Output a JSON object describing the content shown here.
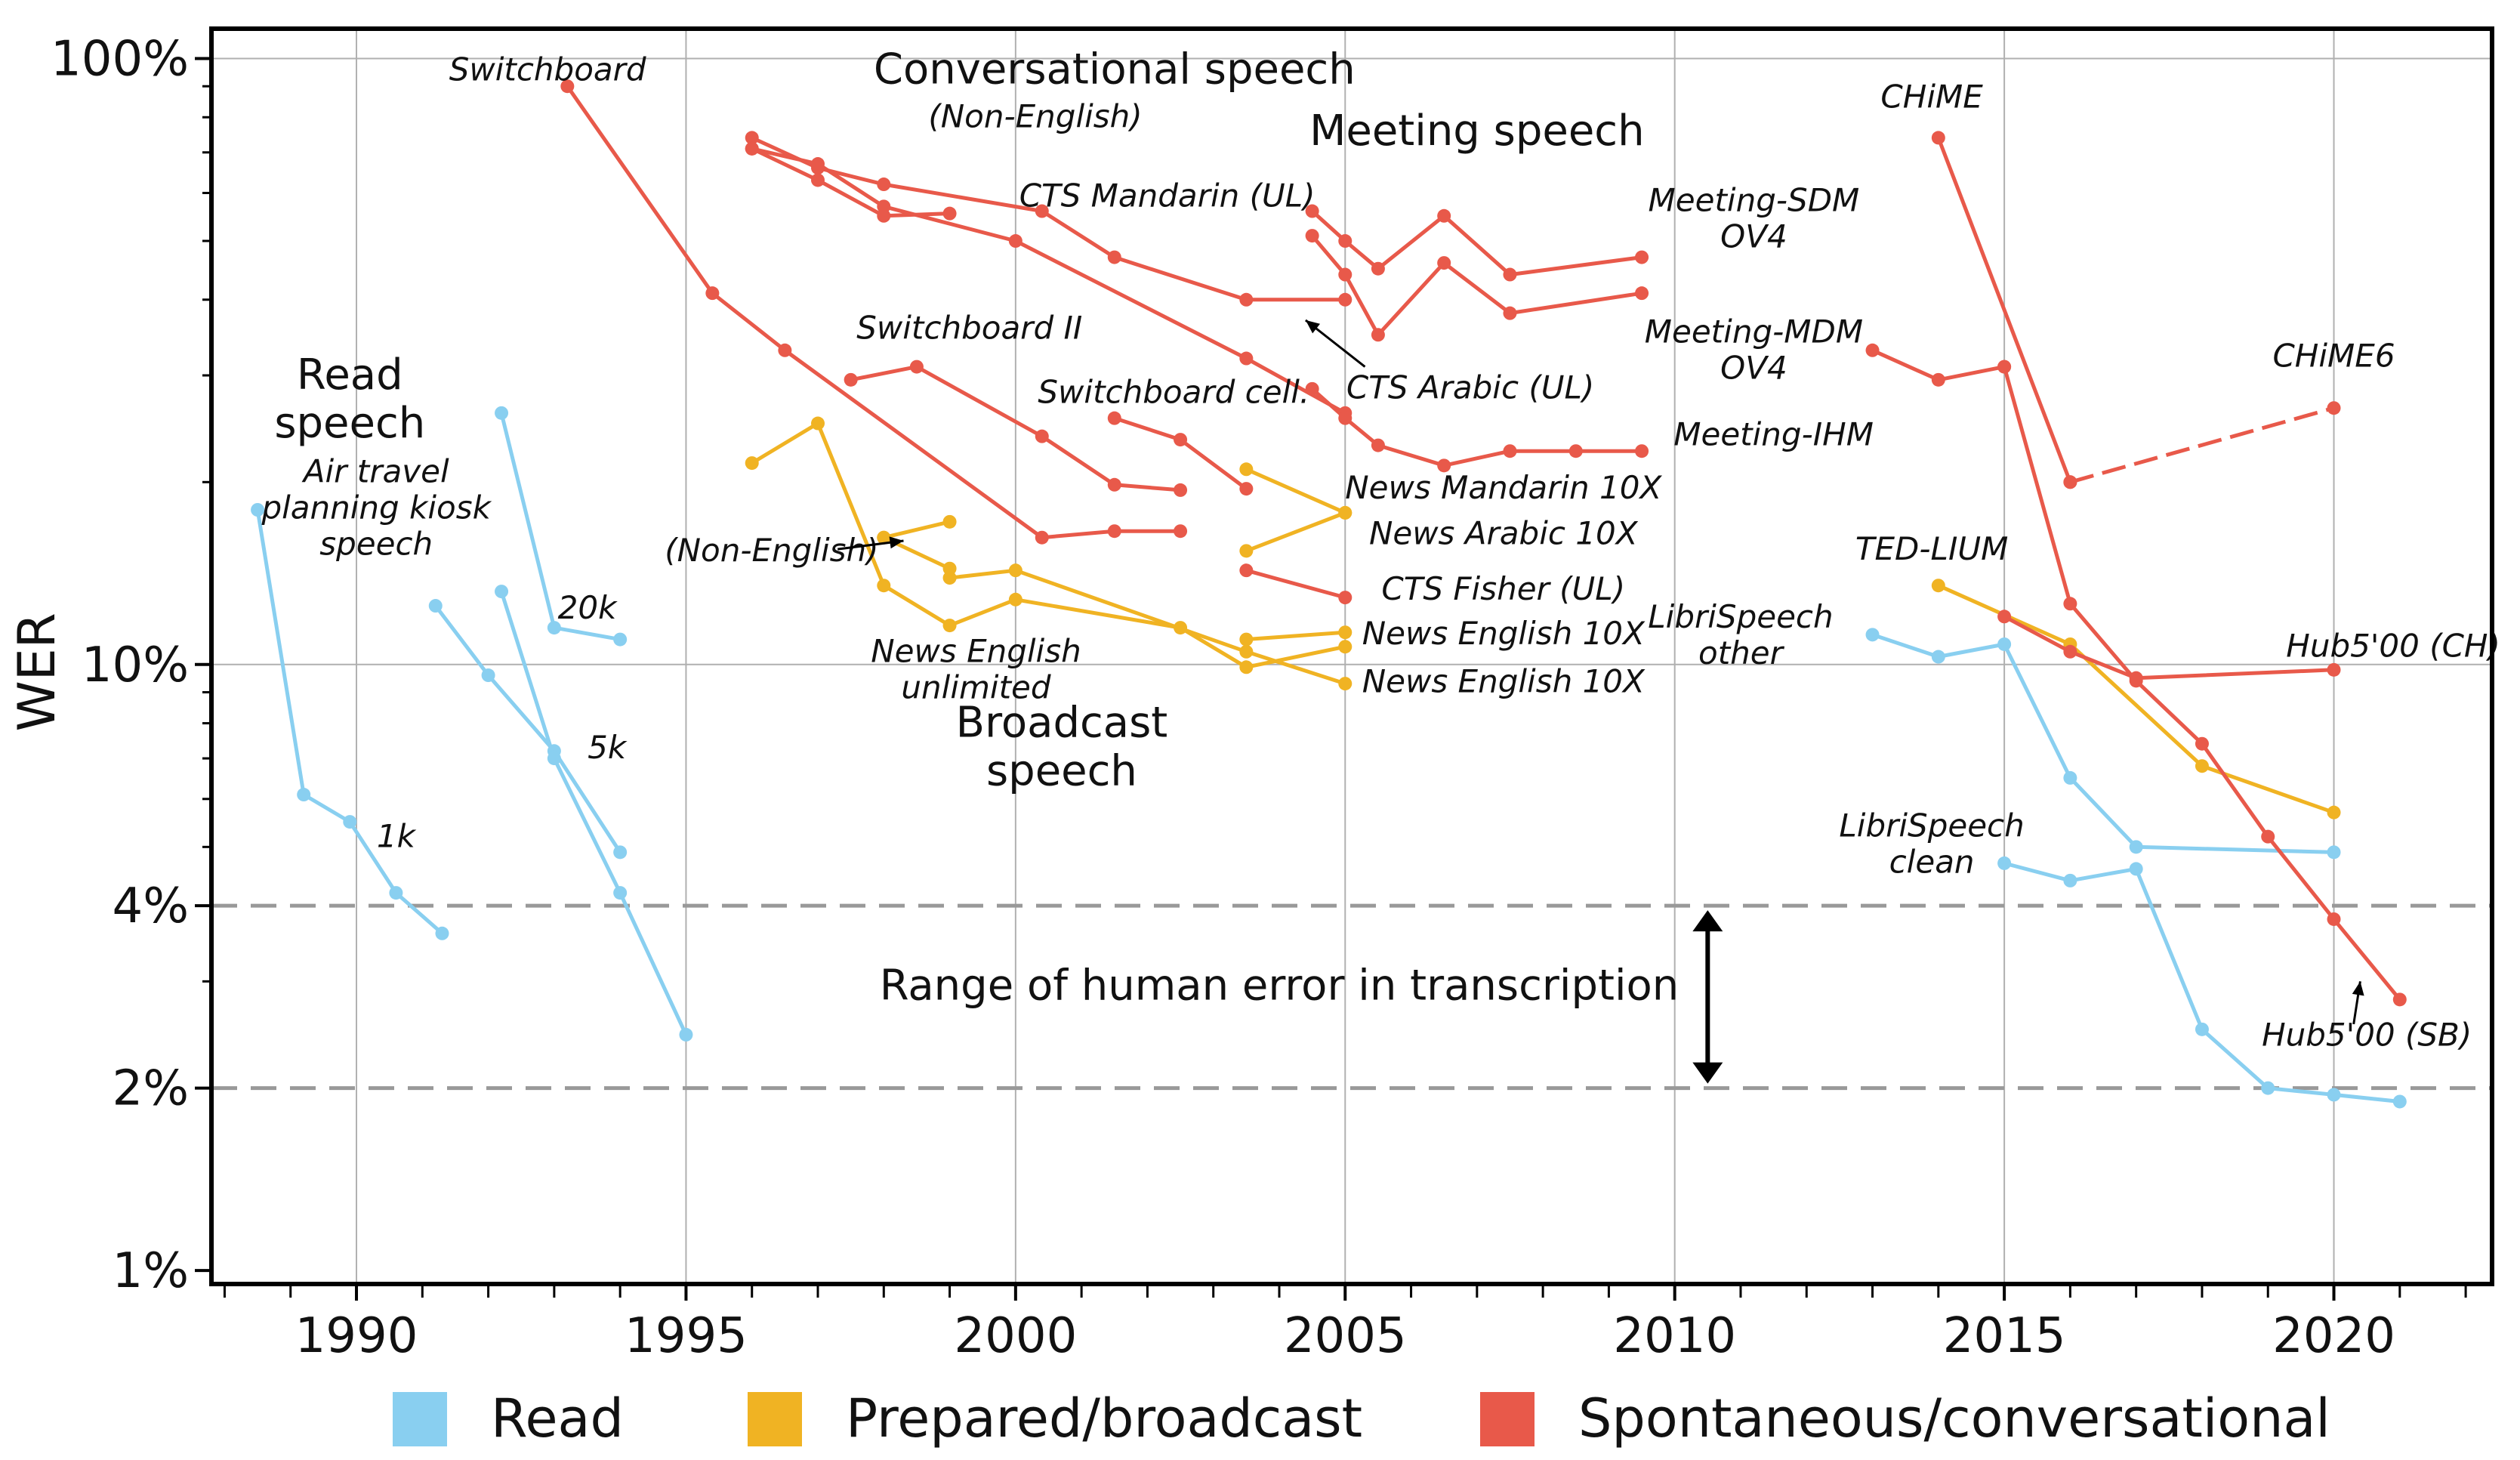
{
  "chart_data": {
    "type": "line",
    "ylabel": "WER",
    "yscale": "log",
    "xlim": [
      1987.8,
      2022.4
    ],
    "ylim": [
      0.95,
      112
    ],
    "x_ticks": [
      1990,
      1995,
      2000,
      2005,
      2010,
      2015,
      2020
    ],
    "x_tick_labels": [
      "1990",
      "1995",
      "2000",
      "2005",
      "2010",
      "2015",
      "2020"
    ],
    "y_ticks": [
      1,
      2,
      4,
      10,
      100
    ],
    "y_tick_labels": [
      "1%",
      "2%",
      "4%",
      "10%",
      "100%"
    ],
    "human_range": {
      "low": 2,
      "high": 4,
      "label": "Range of human error in transcription"
    },
    "colors": {
      "Read": "#89CFF0",
      "Prepared/broadcast": "#F0B323",
      "Spontaneous/conversational": "#E8594A",
      "grid": "#b0b0b0",
      "dashed": "#999999"
    },
    "legend": [
      {
        "name": "Read",
        "color": "#89CFF0"
      },
      {
        "name": "Prepared/broadcast",
        "color": "#F0B323"
      },
      {
        "name": "Spontaneous/conversational",
        "color": "#E8594A"
      }
    ],
    "series": [
      {
        "name": "Air travel planning kiosk speech",
        "category": "Read",
        "points": [
          [
            1988.5,
            18
          ],
          [
            1989.2,
            6.1
          ],
          [
            1989.9,
            5.5
          ],
          [
            1990.6,
            4.2
          ],
          [
            1991.3,
            3.6
          ]
        ]
      },
      {
        "name": "1k",
        "category": "Read",
        "points": [
          [
            1991.2,
            12.5
          ],
          [
            1992.0,
            9.6
          ],
          [
            1993.0,
            7.2
          ],
          [
            1994.0,
            4.9
          ]
        ]
      },
      {
        "name": "20k",
        "category": "Read",
        "points": [
          [
            1992.2,
            26
          ],
          [
            1993.0,
            11.5
          ],
          [
            1994.0,
            11.0
          ]
        ]
      },
      {
        "name": "5k",
        "category": "Read",
        "points": [
          [
            1992.2,
            13.2
          ],
          [
            1993.0,
            7.0
          ],
          [
            1994.0,
            4.2
          ],
          [
            1995.0,
            2.45
          ]
        ]
      },
      {
        "name": "LibriSpeech other",
        "category": "Read",
        "points": [
          [
            2013.0,
            11.2
          ],
          [
            2014.0,
            10.3
          ],
          [
            2015.0,
            10.8
          ],
          [
            2016.0,
            6.5
          ],
          [
            2017.0,
            5.0
          ],
          [
            2020.0,
            4.9
          ]
        ]
      },
      {
        "name": "LibriSpeech clean",
        "category": "Read",
        "points": [
          [
            2015.0,
            4.7
          ],
          [
            2016.0,
            4.4
          ],
          [
            2017.0,
            4.6
          ],
          [
            2018.0,
            2.5
          ],
          [
            2019.0,
            2.0
          ],
          [
            2020.0,
            1.95
          ],
          [
            2021.0,
            1.9
          ]
        ]
      },
      {
        "name": "News English unlimited",
        "category": "Prepared/broadcast",
        "points": [
          [
            1996.0,
            21.5
          ],
          [
            1997.0,
            25
          ],
          [
            1998.0,
            13.5
          ],
          [
            1999.0,
            11.6
          ],
          [
            2000.0,
            12.8
          ],
          [
            2002.5,
            11.5
          ],
          [
            2003.5,
            9.9
          ],
          [
            2005.0,
            10.7
          ]
        ]
      },
      {
        "name": "News English 10X",
        "category": "Prepared/broadcast",
        "points": [
          [
            1999.0,
            13.9
          ],
          [
            2000.0,
            14.3
          ],
          [
            2003.5,
            10.5
          ],
          [
            2005.0,
            9.3
          ]
        ]
      },
      {
        "name": "(Non-English)",
        "category": "Prepared/broadcast",
        "points": [
          [
            1998.0,
            16.2
          ],
          [
            1999.0,
            17.2
          ]
        ]
      },
      {
        "name": "(Non-English) b",
        "category": "Prepared/broadcast",
        "points": [
          [
            1998.0,
            16.2
          ],
          [
            1999.0,
            14.4
          ]
        ]
      },
      {
        "name": "News Mandarin 10X",
        "category": "Prepared/broadcast",
        "points": [
          [
            2003.5,
            21
          ],
          [
            2005.0,
            17.8
          ]
        ]
      },
      {
        "name": "News Arabic 10X",
        "category": "Prepared/broadcast",
        "points": [
          [
            2003.5,
            15.4
          ],
          [
            2005.0,
            17.8
          ]
        ]
      },
      {
        "name": "News English 10X (2)",
        "category": "Prepared/broadcast",
        "points": [
          [
            2003.5,
            11.0
          ],
          [
            2005.0,
            11.3
          ]
        ]
      },
      {
        "name": "TED-LIUM",
        "category": "Prepared/broadcast",
        "points": [
          [
            2014.0,
            13.5
          ],
          [
            2016.0,
            10.8
          ],
          [
            2018.0,
            6.8
          ],
          [
            2020.0,
            5.7
          ]
        ]
      },
      {
        "name": "Switchboard",
        "category": "Spontaneous/conversational",
        "points": [
          [
            1993.2,
            90
          ],
          [
            1995.4,
            41
          ],
          [
            1996.5,
            33
          ],
          [
            2000.4,
            16.2
          ],
          [
            2001.5,
            16.6
          ],
          [
            2002.5,
            16.6
          ]
        ]
      },
      {
        "name": "Conversational speech (Non-English)",
        "category": "Spontaneous/conversational",
        "points": [
          [
            1996.0,
            74
          ],
          [
            1997.0,
            66
          ],
          [
            1998.0,
            62
          ],
          [
            2000.4,
            56
          ],
          [
            2001.5,
            47
          ],
          [
            2003.5,
            40
          ],
          [
            2005.0,
            40
          ]
        ]
      },
      {
        "name": "CTS Mandarin (UL)",
        "category": "Spontaneous/conversational",
        "points": [
          [
            1996.0,
            71
          ],
          [
            1997.0,
            63
          ],
          [
            1998.0,
            55
          ],
          [
            1999.0,
            55.5
          ]
        ]
      },
      {
        "name": "CTS Arabic (UL)",
        "category": "Spontaneous/conversational",
        "points": [
          [
            1996.0,
            71
          ],
          [
            1997.0,
            67
          ],
          [
            1998.0,
            57
          ],
          [
            2000.0,
            50
          ],
          [
            2003.5,
            32
          ],
          [
            2005.0,
            26
          ]
        ]
      },
      {
        "name": "Switchboard II",
        "category": "Spontaneous/conversational",
        "points": [
          [
            1997.5,
            29.5
          ],
          [
            1998.5,
            31
          ],
          [
            2000.4,
            23.8
          ],
          [
            2001.5,
            19.8
          ],
          [
            2002.5,
            19.4
          ]
        ]
      },
      {
        "name": "Switchboard cell.",
        "category": "Spontaneous/conversational",
        "points": [
          [
            2001.5,
            25.5
          ],
          [
            2002.5,
            23.5
          ],
          [
            2003.5,
            19.5
          ]
        ]
      },
      {
        "name": "Meeting-SDM OV4",
        "category": "Spontaneous/conversational",
        "points": [
          [
            2004.5,
            56
          ],
          [
            2005.0,
            50
          ],
          [
            2005.5,
            45
          ],
          [
            2006.5,
            55
          ],
          [
            2007.5,
            44
          ],
          [
            2009.5,
            47
          ]
        ]
      },
      {
        "name": "Meeting-MDM OV4",
        "category": "Spontaneous/conversational",
        "points": [
          [
            2004.5,
            51
          ],
          [
            2005.0,
            44
          ],
          [
            2005.5,
            35
          ],
          [
            2006.5,
            46
          ],
          [
            2007.5,
            38
          ],
          [
            2009.5,
            41
          ]
        ]
      },
      {
        "name": "Meeting-IHM",
        "category": "Spontaneous/conversational",
        "points": [
          [
            2004.5,
            28.5
          ],
          [
            2005.0,
            25.5
          ],
          [
            2005.5,
            23
          ],
          [
            2006.5,
            21.3
          ],
          [
            2007.5,
            22.5
          ],
          [
            2008.5,
            22.5
          ],
          [
            2009.5,
            22.5
          ]
        ]
      },
      {
        "name": "CTS Fisher (UL)",
        "category": "Spontaneous/conversational",
        "points": [
          [
            2003.5,
            14.3
          ],
          [
            2005.0,
            12.9
          ]
        ]
      },
      {
        "name": "CHiME",
        "category": "Spontaneous/conversational",
        "points": [
          [
            2014.0,
            74
          ],
          [
            2016.0,
            20
          ]
        ]
      },
      {
        "name": "CHiME6",
        "category": "Spontaneous/conversational",
        "dashed": true,
        "points": [
          [
            2016.0,
            20
          ],
          [
            2020.0,
            26.5
          ]
        ]
      },
      {
        "name": "CHiME (Meeting)",
        "category": "Spontaneous/conversational",
        "points": [
          [
            2013.0,
            33
          ],
          [
            2014.0,
            29.5
          ],
          [
            2015.0,
            31
          ]
        ]
      },
      {
        "name": "Hub5'00 (CH)",
        "category": "Spontaneous/conversational",
        "points": [
          [
            2015.0,
            12.0
          ],
          [
            2016.0,
            10.5
          ],
          [
            2017.0,
            9.5
          ],
          [
            2020.0,
            9.8
          ]
        ]
      },
      {
        "name": "Hub5'00 (SB)",
        "category": "Spontaneous/conversational",
        "points": [
          [
            2015.0,
            31
          ],
          [
            2016.0,
            12.6
          ],
          [
            2017.0,
            9.4
          ],
          [
            2018.0,
            7.4
          ],
          [
            2019.0,
            5.2
          ],
          [
            2020.0,
            3.8
          ],
          [
            2021.0,
            2.8
          ]
        ]
      }
    ],
    "annotations": [
      {
        "id": "read-speech",
        "text": "Read speech",
        "line1": "Read",
        "line2": "speech",
        "italic": false,
        "x": 1989.9,
        "y": 28.5
      },
      {
        "id": "air-travel",
        "text": "Air travel planning kiosk speech",
        "line1": "Air travel",
        "line2": "planning kiosk",
        "line3": "speech",
        "italic": true,
        "x": 1990.3,
        "y": 20
      },
      {
        "id": "1k",
        "text": "1k",
        "italic": true,
        "x": 1990.6,
        "y": 5.0
      },
      {
        "id": "20k",
        "text": "20k",
        "italic": true,
        "x": 1993.5,
        "y": 11.9
      },
      {
        "id": "5k",
        "text": "5k",
        "italic": true,
        "x": 1993.8,
        "y": 7.0
      },
      {
        "id": "switchboard",
        "text": "Switchboard",
        "italic": true,
        "x": 1992.9,
        "y": 92
      },
      {
        "id": "conversational",
        "text": "Conversational speech",
        "italic": false,
        "x": 2001.5,
        "y": 91
      },
      {
        "id": "non-english-cts",
        "text": "(Non-English)",
        "italic": true,
        "x": 2000.3,
        "y": 77
      },
      {
        "id": "cts-mandarin",
        "text": "CTS Mandarin (UL)",
        "italic": true,
        "x": 2002.3,
        "y": 57
      },
      {
        "id": "switchboard-ii",
        "text": "Switchboard II",
        "italic": true,
        "x": 1999.3,
        "y": 34.5
      },
      {
        "id": "switchboard-cell",
        "text": "Switchboard cell.",
        "italic": true,
        "x": 2002.4,
        "y": 27
      },
      {
        "id": "meeting-speech",
        "text": "Meeting speech",
        "italic": false,
        "x": 2007.0,
        "y": 72
      },
      {
        "id": "meeting-sdm",
        "text": "Meeting-SDM",
        "line2": "OV4",
        "italic": true,
        "x": 2011.2,
        "y": 56
      },
      {
        "id": "meeting-mdm",
        "text": "Meeting-MDM",
        "line2": "OV4",
        "italic": true,
        "x": 2011.2,
        "y": 34
      },
      {
        "id": "cts-arabic",
        "text": "CTS Arabic (UL)",
        "italic": true,
        "x": 2006.9,
        "y": 27.5
      },
      {
        "id": "meeting-ihm",
        "text": "Meeting-IHM",
        "italic": true,
        "x": 2011.5,
        "y": 23
      },
      {
        "id": "news-mandarin",
        "text": "News Mandarin 10X",
        "italic": true,
        "x": 2007.4,
        "y": 18.8
      },
      {
        "id": "news-arabic",
        "text": "News Arabic 10X",
        "italic": true,
        "x": 2007.4,
        "y": 15.8
      },
      {
        "id": "cts-fisher",
        "text": "CTS Fisher (UL)",
        "italic": true,
        "x": 2007.4,
        "y": 12.8
      },
      {
        "id": "news-english-a",
        "text": "News English 10X",
        "italic": true,
        "x": 2007.4,
        "y": 10.8
      },
      {
        "id": "news-english-b",
        "text": "News English 10X",
        "italic": true,
        "x": 2007.4,
        "y": 9.0
      },
      {
        "id": "non-english-news",
        "text": "(Non-English)",
        "italic": true,
        "x": 1996.3,
        "y": 14.8
      },
      {
        "id": "news-english-unl",
        "text": "News English unlimited",
        "line1": "News English",
        "line2": "unlimited",
        "italic": true,
        "x": 1999.4,
        "y": 10.1
      },
      {
        "id": "broadcast-speech",
        "text": "Broadcast speech",
        "line1": "Broadcast",
        "line2": "speech",
        "italic": false,
        "x": 2000.7,
        "y": 7.6
      },
      {
        "id": "human-range",
        "text": "Range of human error in transcription",
        "italic": false,
        "x": 2004.0,
        "y": 2.8
      },
      {
        "id": "chime",
        "text": "CHiME",
        "italic": true,
        "x": 2013.9,
        "y": 83
      },
      {
        "id": "chime6",
        "text": "CHiME6",
        "italic": true,
        "x": 2020.0,
        "y": 31
      },
      {
        "id": "ted-lium",
        "text": "TED-LIUM",
        "italic": true,
        "x": 2013.9,
        "y": 14.9
      },
      {
        "id": "librispeech-other",
        "text": "LibriSpeech other",
        "line1": "LibriSpeech",
        "line2": "other",
        "italic": true,
        "x": 2011.0,
        "y": 11.5
      },
      {
        "id": "hub5-ch",
        "text": "Hub5'00 (CH)",
        "italic": true,
        "x": 2020.9,
        "y": 10.3
      },
      {
        "id": "librispeech-clean",
        "text": "LibriSpeech clean",
        "line1": "LibriSpeech",
        "line2": "clean",
        "italic": true,
        "x": 2013.9,
        "y": 5.2
      },
      {
        "id": "hub5-sb",
        "text": "Hub5'00 (SB)",
        "italic": true,
        "x": 2020.5,
        "y": 2.35
      }
    ]
  }
}
